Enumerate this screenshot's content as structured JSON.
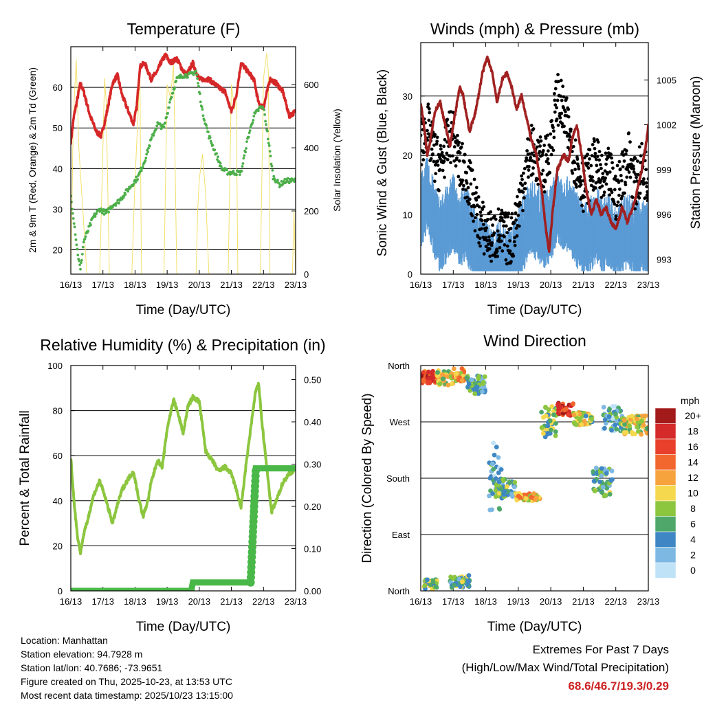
{
  "colors": {
    "temp": "#d62728",
    "dew": "#4daf4a",
    "solar": "#f2e06a",
    "gust": "#000000",
    "wind": "#5b9bd5",
    "pressure": "#a02020",
    "rh": "#8cc63f",
    "rain": "#4ab848",
    "extremes": "#cc2222"
  },
  "x_ticks": [
    "16/13",
    "17/13",
    "18/13",
    "19/13",
    "20/13",
    "21/13",
    "22/13",
    "23/13"
  ],
  "chart_data": [
    {
      "type": "line",
      "id": "temperature",
      "title": "Temperature (F)",
      "xlabel": "Time (Day/UTC)",
      "ylabel": "2m & 9m T (Red, Orange) & 2m Td (Green)",
      "ylabel_right": "Solar Insolation (Yellow)",
      "ylim": [
        14,
        70
      ],
      "yticks": [
        20,
        30,
        40,
        50,
        60
      ],
      "ylim_right": [
        0,
        720
      ],
      "yticks_right": [
        0,
        200,
        400,
        600
      ],
      "xlim": [
        0,
        7
      ],
      "series": [
        {
          "name": "2m T",
          "color": "temp",
          "x": [
            0,
            0.1,
            0.2,
            0.3,
            0.4,
            0.6,
            0.8,
            0.95,
            1.1,
            1.3,
            1.45,
            1.6,
            1.8,
            1.95,
            2.05,
            2.15,
            2.3,
            2.5,
            2.7,
            2.8,
            2.95,
            3.1,
            3.3,
            3.5,
            3.6,
            3.8,
            4.0,
            4.3,
            4.6,
            4.8,
            5.0,
            5.15,
            5.3,
            5.5,
            5.7,
            5.85,
            6.0,
            6.2,
            6.4,
            6.6,
            6.8,
            7.0
          ],
          "y": [
            46.5,
            53,
            57,
            61,
            59,
            53,
            49,
            48,
            53,
            61,
            63,
            58,
            54,
            51,
            55,
            65,
            66,
            62,
            64,
            66,
            68,
            66,
            67,
            64,
            63,
            66,
            62,
            62,
            60,
            59,
            54,
            58,
            66,
            64,
            62,
            56,
            55,
            62,
            61,
            59,
            53,
            54
          ]
        },
        {
          "name": "2m Td",
          "color": "dew",
          "x": [
            0,
            0.1,
            0.2,
            0.3,
            0.4,
            0.5,
            0.7,
            0.9,
            1.1,
            1.3,
            1.5,
            1.7,
            1.9,
            2.1,
            2.3,
            2.5,
            2.7,
            2.9,
            3.1,
            3.3,
            3.5,
            3.7,
            3.9,
            4.1,
            4.3,
            4.5,
            4.7,
            4.9,
            5.1,
            5.3,
            5.5,
            5.7,
            5.9,
            6.0,
            6.1,
            6.3,
            6.5,
            6.7,
            6.9,
            7.0
          ],
          "y": [
            33,
            27,
            20,
            15,
            22,
            24,
            28,
            30,
            29,
            31,
            32,
            34,
            36,
            38,
            42,
            47,
            51,
            50,
            57,
            62,
            63,
            63,
            64,
            54,
            48,
            44,
            40,
            39,
            39,
            39,
            47,
            53,
            55,
            55,
            50,
            38,
            36,
            37,
            37,
            37
          ]
        },
        {
          "name": "Solar Insolation",
          "color": "solar",
          "axis": "right",
          "x": [
            0,
            0.08,
            0.17,
            0.25,
            0.5,
            0.9,
            1.0,
            1.05,
            1.1,
            1.2,
            1.9,
            2.0,
            2.1,
            2.15,
            2.2,
            2.9,
            3.0,
            3.1,
            3.2,
            3.3,
            3.9,
            3.95,
            4.0,
            4.1,
            4.2,
            4.3,
            4.9,
            5.0,
            5.1,
            5.15,
            5.2,
            5.9,
            6.0,
            6.1,
            6.15,
            6.2,
            6.9,
            6.95,
            7.0
          ],
          "y": [
            0,
            500,
            680,
            400,
            0,
            0,
            400,
            620,
            550,
            0,
            0,
            300,
            520,
            650,
            0,
            0,
            600,
            560,
            660,
            0,
            0,
            200,
            300,
            380,
            250,
            0,
            0,
            600,
            520,
            580,
            0,
            0,
            620,
            700,
            640,
            0,
            0,
            200,
            0
          ]
        }
      ]
    },
    {
      "type": "line",
      "id": "winds",
      "title": "Winds (mph) & Pressure (mb)",
      "xlabel": "Time (Day/UTC)",
      "ylabel": "Sonic Wind & Gust (Blue, Black)",
      "ylabel_right": "Station Pressure (Maroon)",
      "ylim": [
        0,
        39
      ],
      "yticks": [
        0,
        10,
        20,
        30
      ],
      "ylim_right": [
        992,
        1007.5
      ],
      "yticks_right": [
        993,
        996,
        999,
        1002,
        1005
      ],
      "xlim": [
        0,
        7
      ],
      "series": [
        {
          "name": "Sonic Wind",
          "color": "wind",
          "x": [
            0,
            0.2,
            0.4,
            0.6,
            0.8,
            1.0,
            1.2,
            1.4,
            1.6,
            1.8,
            2.0,
            2.2,
            2.4,
            2.6,
            2.8,
            3.0,
            3.2,
            3.4,
            3.6,
            3.8,
            4.0,
            4.2,
            4.4,
            4.6,
            4.8,
            5.0,
            5.2,
            5.4,
            5.6,
            5.8,
            6.0,
            6.2,
            6.4,
            6.6,
            6.8,
            7.0
          ],
          "y": [
            12,
            15,
            11,
            8,
            10,
            12,
            9,
            10,
            7,
            5,
            4,
            3,
            4,
            3,
            3,
            6,
            9,
            11,
            10,
            9,
            10,
            13,
            12,
            11,
            9,
            7,
            8,
            10,
            8,
            9,
            6,
            8,
            9,
            7,
            8,
            7
          ]
        },
        {
          "name": "Gust",
          "color": "gust",
          "x": [
            0,
            0.2,
            0.4,
            0.6,
            0.8,
            1.0,
            1.2,
            1.4,
            1.6,
            1.8,
            2.0,
            2.2,
            2.4,
            2.6,
            2.8,
            3.0,
            3.2,
            3.4,
            3.6,
            3.8,
            4.0,
            4.2,
            4.4,
            4.6,
            4.8,
            5.0,
            5.2,
            5.4,
            5.6,
            5.8,
            6.0,
            6.2,
            6.4,
            6.6,
            6.8,
            7.0
          ],
          "y": [
            22,
            25,
            20,
            18,
            22,
            24,
            18,
            17,
            13,
            9,
            7,
            6,
            7,
            6,
            6,
            11,
            17,
            21,
            19,
            18,
            22,
            30,
            27,
            23,
            18,
            15,
            17,
            19,
            15,
            17,
            13,
            17,
            20,
            15,
            18,
            16
          ]
        },
        {
          "name": "Station Pressure",
          "color": "pressure",
          "axis": "right",
          "x": [
            0,
            0.1,
            0.2,
            0.3,
            0.45,
            0.6,
            0.75,
            0.9,
            1.0,
            1.2,
            1.3,
            1.5,
            1.7,
            1.9,
            2.05,
            2.2,
            2.35,
            2.5,
            2.65,
            2.8,
            2.95,
            3.1,
            3.25,
            3.4,
            3.55,
            3.7,
            3.85,
            3.95,
            4.05,
            4.2,
            4.4,
            4.55,
            4.65,
            4.8,
            4.95,
            5.1,
            5.25,
            5.4,
            5.55,
            5.7,
            5.85,
            6.0,
            6.2,
            6.35,
            6.45,
            6.6,
            6.8,
            6.95,
            7.0
          ],
          "y": [
            1003.5,
            1002,
            1000,
            1001,
            1003,
            1003.5,
            1002,
            1000.5,
            1002,
            1004.5,
            1004,
            1001.5,
            1003,
            1005.5,
            1006.5,
            1005.5,
            1003.5,
            1005,
            1005.5,
            1004.5,
            1003,
            1004,
            1002.5,
            1001,
            1000,
            998,
            995,
            993.5,
            996,
            999,
            1000,
            999.5,
            1001,
            1002,
            1000,
            997.5,
            996,
            997,
            996,
            996.5,
            995.5,
            995,
            996.5,
            995.5,
            996,
            997,
            999,
            1001,
            1002
          ]
        }
      ]
    },
    {
      "type": "line",
      "id": "humidity",
      "title": "Relative Humidity (%) & Precipitation (in)",
      "xlabel": "Time (Day/UTC)",
      "ylabel": "Percent & Total Rainfall",
      "ylim": [
        0,
        100
      ],
      "yticks": [
        0,
        20,
        40,
        60,
        80,
        100
      ],
      "ylim_right": [
        0,
        0.5333
      ],
      "yticks_right": [
        "0.00",
        "0.10",
        "0.20",
        "0.30",
        "0.40",
        "0.50"
      ],
      "xlim": [
        0,
        7
      ],
      "series": [
        {
          "name": "Relative Humidity",
          "color": "rh",
          "x": [
            0,
            0.1,
            0.2,
            0.3,
            0.4,
            0.5,
            0.7,
            0.9,
            1.1,
            1.3,
            1.45,
            1.6,
            1.8,
            1.95,
            2.1,
            2.25,
            2.4,
            2.5,
            2.7,
            2.85,
            3.0,
            3.2,
            3.35,
            3.5,
            3.65,
            3.8,
            4.0,
            4.2,
            4.4,
            4.6,
            4.8,
            5.0,
            5.15,
            5.3,
            5.45,
            5.6,
            5.75,
            5.85,
            5.95,
            6.1,
            6.25,
            6.4,
            6.6,
            6.8,
            7.0
          ],
          "y": [
            59,
            40,
            25,
            17,
            25,
            30,
            42,
            49,
            40,
            30,
            38,
            45,
            50,
            53,
            42,
            33,
            40,
            48,
            58,
            55,
            72,
            85,
            78,
            70,
            82,
            86,
            84,
            62,
            58,
            53,
            55,
            52,
            45,
            37,
            55,
            72,
            88,
            92,
            75,
            55,
            35,
            40,
            48,
            52,
            54
          ]
        },
        {
          "name": "Total Precipitation",
          "color": "rain",
          "axis": "right",
          "step": true,
          "x": [
            0,
            3.75,
            3.8,
            5.6,
            5.62,
            5.65,
            5.68,
            5.72,
            5.76,
            7.0
          ],
          "y": [
            0,
            0,
            0.02,
            0.02,
            0.06,
            0.12,
            0.18,
            0.24,
            0.29,
            0.29
          ]
        }
      ]
    },
    {
      "type": "scatter",
      "id": "wind_direction",
      "title": "Wind Direction",
      "xlabel": "Time (Day/UTC)",
      "ylabel": "Direction (Colored By Speed)",
      "yticks": [
        "North",
        "East",
        "South",
        "West",
        "North"
      ],
      "ylim": [
        0,
        360
      ],
      "xlim": [
        0,
        7
      ],
      "clusters": [
        {
          "x0": 0,
          "x1": 0.5,
          "dir": 342,
          "spread": 10,
          "speed": 16
        },
        {
          "x0": 0.5,
          "x1": 1.0,
          "dir": 340,
          "spread": 12,
          "speed": 9
        },
        {
          "x0": 1.0,
          "x1": 1.4,
          "dir": 345,
          "spread": 10,
          "speed": 11
        },
        {
          "x0": 1.4,
          "x1": 2.0,
          "dir": 330,
          "spread": 15,
          "speed": 5
        },
        {
          "x0": 2.1,
          "x1": 2.5,
          "dir": 180,
          "spread": 60,
          "speed": 4
        },
        {
          "x0": 2.3,
          "x1": 2.9,
          "dir": 165,
          "spread": 15,
          "speed": 6
        },
        {
          "x0": 2.9,
          "x1": 3.7,
          "dir": 150,
          "spread": 6,
          "speed": 11
        },
        {
          "x0": 3.7,
          "x1": 4.2,
          "dir": 270,
          "spread": 25,
          "speed": 7
        },
        {
          "x0": 4.2,
          "x1": 4.7,
          "dir": 290,
          "spread": 10,
          "speed": 17
        },
        {
          "x0": 4.7,
          "x1": 5.3,
          "dir": 275,
          "spread": 10,
          "speed": 8
        },
        {
          "x0": 5.3,
          "x1": 5.9,
          "dir": 175,
          "spread": 25,
          "speed": 6
        },
        {
          "x0": 5.6,
          "x1": 6.2,
          "dir": 275,
          "spread": 20,
          "speed": 4
        },
        {
          "x0": 6.2,
          "x1": 7.0,
          "dir": 265,
          "spread": 15,
          "speed": 9
        },
        {
          "x0": 0.1,
          "x1": 0.5,
          "dir": 10,
          "spread": 8,
          "speed": 8
        },
        {
          "x0": 0.9,
          "x1": 1.5,
          "dir": 15,
          "spread": 10,
          "speed": 6
        }
      ],
      "legend_title": "mph",
      "legend_labels": [
        "20+",
        "18",
        "16",
        "14",
        "12",
        "10",
        "8",
        "6",
        "4",
        "2",
        "0"
      ],
      "legend_colors": [
        "#a31a1a",
        "#d42a2a",
        "#e8402a",
        "#f2672e",
        "#f7a33d",
        "#f5d84e",
        "#8cc63f",
        "#4fa86a",
        "#3f87c4",
        "#7db8e3",
        "#bfe2f7"
      ]
    }
  ],
  "station_info": {
    "location": "Location: Manhattan",
    "elevation": "Station elevation: 94.7928 m",
    "latlon": "Station lat/lon: 40.7686; -73.9651",
    "created": "Figure created on Thu, 2025-10-23, at 13:53 UTC",
    "recent": "Most recent data timestamp: 2025/10/23 13:15:00"
  },
  "extremes": {
    "title": "Extremes For Past 7 Days",
    "subtitle": "(High/Low/Max Wind/Total Precipitation)",
    "values": "68.6/46.7/19.3/0.29"
  }
}
